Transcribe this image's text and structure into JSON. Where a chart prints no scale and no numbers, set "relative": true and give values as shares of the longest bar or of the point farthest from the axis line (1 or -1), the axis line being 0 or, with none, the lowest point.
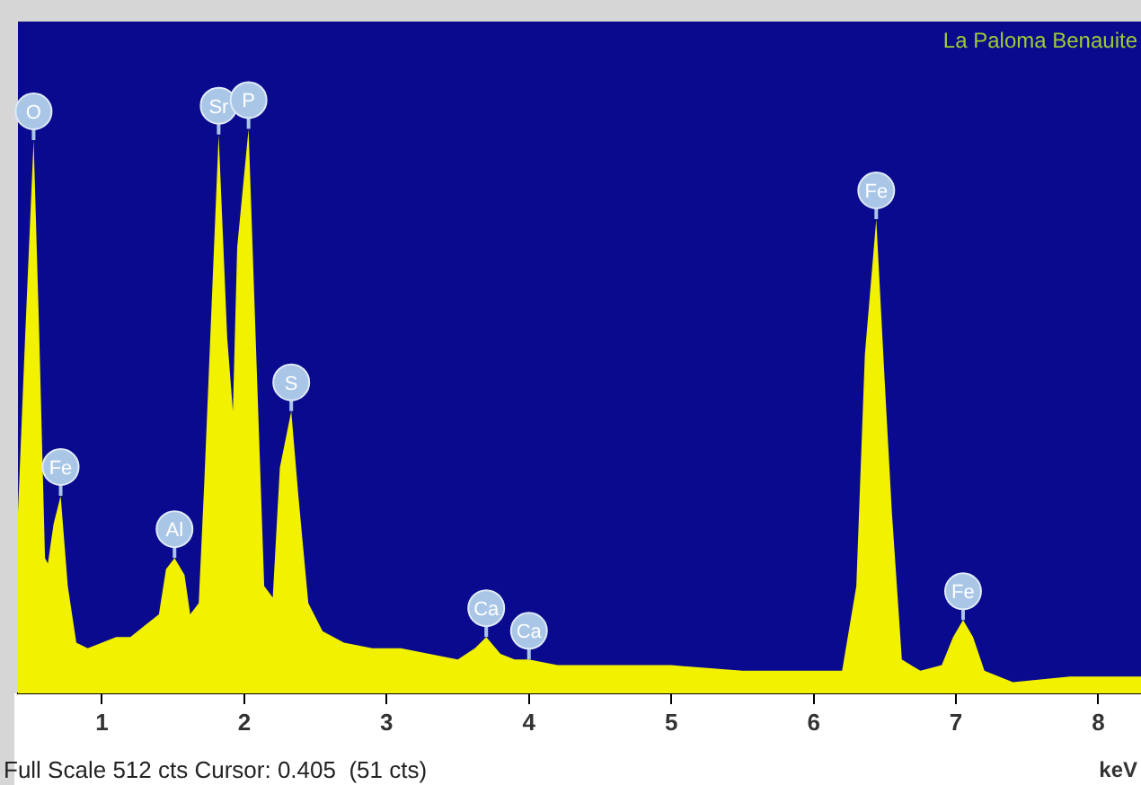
{
  "chart_data": {
    "type": "area",
    "title": "La Paloma Benauite",
    "xlabel": "keV",
    "relative": true,
    "color": "#f2f200",
    "x": [
      0.41,
      0.46,
      0.52,
      0.56,
      0.6,
      0.62,
      0.66,
      0.71,
      0.76,
      0.82,
      0.9,
      1.0,
      1.1,
      1.2,
      1.3,
      1.4,
      1.45,
      1.51,
      1.58,
      1.62,
      1.68,
      1.72,
      1.82,
      1.88,
      1.92,
      1.95,
      2.03,
      2.08,
      2.14,
      2.2,
      2.25,
      2.33,
      2.38,
      2.45,
      2.55,
      2.7,
      2.9,
      3.1,
      3.3,
      3.5,
      3.62,
      3.7,
      3.8,
      3.9,
      4.0,
      4.2,
      4.5,
      5.0,
      5.5,
      6.0,
      6.2,
      6.3,
      6.36,
      6.44,
      6.5,
      6.55,
      6.62,
      6.75,
      6.9,
      6.98,
      7.05,
      7.12,
      7.2,
      7.4,
      7.8,
      8.1,
      8.3
    ],
    "values": [
      0.32,
      0.63,
      0.98,
      0.63,
      0.24,
      0.23,
      0.3,
      0.35,
      0.19,
      0.09,
      0.08,
      0.09,
      0.1,
      0.1,
      0.12,
      0.14,
      0.22,
      0.24,
      0.21,
      0.14,
      0.16,
      0.38,
      0.99,
      0.63,
      0.5,
      0.79,
      1.0,
      0.63,
      0.19,
      0.17,
      0.4,
      0.5,
      0.35,
      0.16,
      0.11,
      0.09,
      0.08,
      0.08,
      0.07,
      0.06,
      0.08,
      0.1,
      0.07,
      0.06,
      0.06,
      0.05,
      0.05,
      0.05,
      0.04,
      0.04,
      0.04,
      0.19,
      0.6,
      0.84,
      0.55,
      0.32,
      0.06,
      0.04,
      0.05,
      0.1,
      0.13,
      0.1,
      0.04,
      0.02,
      0.03,
      0.03,
      0.03
    ],
    "xlim": [
      0.41,
      8.3
    ],
    "xticks": [
      1,
      2,
      3,
      4,
      5,
      6,
      7,
      8
    ],
    "annotations": [
      {
        "text": "O",
        "x": 0.52,
        "y": 0.98
      },
      {
        "text": "Fe",
        "x": 0.71,
        "y": 0.35
      },
      {
        "text": "Al",
        "x": 1.51,
        "y": 0.24
      },
      {
        "text": "Sr",
        "x": 1.82,
        "y": 0.99
      },
      {
        "text": "P",
        "x": 2.03,
        "y": 1.0
      },
      {
        "text": "S",
        "x": 2.33,
        "y": 0.5
      },
      {
        "text": "Ca",
        "x": 3.7,
        "y": 0.1
      },
      {
        "text": "Ca",
        "x": 4.0,
        "y": 0.06
      },
      {
        "text": "Fe",
        "x": 6.44,
        "y": 0.84
      },
      {
        "text": "Fe",
        "x": 7.05,
        "y": 0.13
      },
      "Full Scale 512 cts Cursor: 0.405  (51 cts)"
    ],
    "grid": false,
    "legend": false
  }
}
